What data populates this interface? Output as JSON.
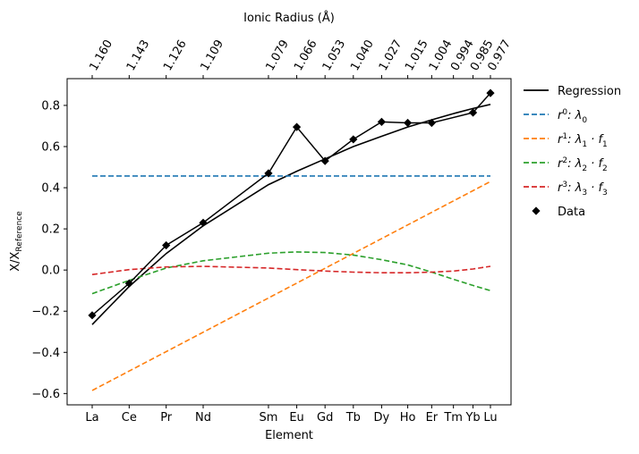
{
  "chart_data": {
    "type": "line",
    "xlabel": "Element",
    "ylabel_main": "X/X",
    "ylabel_sub": "Reference",
    "top_axis_label": "Ionic Radius (Å)",
    "ylim": [
      -0.655,
      0.93
    ],
    "yticks": [
      -0.6,
      -0.4,
      -0.2,
      0.0,
      0.2,
      0.4,
      0.6,
      0.8
    ],
    "ytick_labels": [
      "−0.6",
      "−0.4",
      "−0.2",
      "0.0",
      "0.2",
      "0.4",
      "0.6",
      "0.8"
    ],
    "elements": [
      "La",
      "Ce",
      "Pr",
      "Nd",
      "Sm",
      "Eu",
      "Gd",
      "Tb",
      "Dy",
      "Ho",
      "Er",
      "Tm",
      "Yb",
      "Lu"
    ],
    "radii": [
      1.16,
      1.143,
      1.126,
      1.109,
      1.079,
      1.066,
      1.053,
      1.04,
      1.027,
      1.015,
      1.004,
      0.994,
      0.985,
      0.977
    ],
    "radii_labels": [
      "1.160",
      "1.143",
      "1.126",
      "1.109",
      "1.079",
      "1.066",
      "1.053",
      "1.040",
      "1.027",
      "1.015",
      "1.004",
      "0.994",
      "0.985",
      "0.977"
    ],
    "data_points": {
      "name": "Data",
      "elements": [
        "La",
        "Ce",
        "Pr",
        "Nd",
        "Sm",
        "Eu",
        "Gd",
        "Tb",
        "Dy",
        "Ho",
        "Er",
        "Yb",
        "Lu"
      ],
      "values": [
        -0.22,
        -0.065,
        0.12,
        0.23,
        0.47,
        0.695,
        0.53,
        0.635,
        0.72,
        0.715,
        0.715,
        0.765,
        0.86
      ]
    },
    "series": [
      {
        "name": "Regression",
        "color": "#000000",
        "dash": "solid",
        "x": [
          1.16,
          1.143,
          1.126,
          1.109,
          1.079,
          1.066,
          1.053,
          1.04,
          1.027,
          1.015,
          1.004,
          0.994,
          0.985,
          0.977
        ],
        "values": [
          -0.265,
          -0.08,
          0.08,
          0.215,
          0.415,
          0.48,
          0.54,
          0.6,
          0.65,
          0.695,
          0.73,
          0.76,
          0.785,
          0.805
        ]
      },
      {
        "name": "r0",
        "color": "#1f77b4",
        "dash": "dashed",
        "x": [
          1.16,
          0.977
        ],
        "values": [
          0.457,
          0.457
        ]
      },
      {
        "name": "r1",
        "color": "#ff7f0e",
        "dash": "dashed",
        "x": [
          1.16,
          0.977
        ],
        "values": [
          -0.585,
          0.43
        ]
      },
      {
        "name": "r2",
        "color": "#2ca02c",
        "dash": "dashed",
        "x": [
          1.16,
          1.143,
          1.126,
          1.109,
          1.079,
          1.066,
          1.053,
          1.04,
          1.027,
          1.015,
          1.004,
          0.994,
          0.985,
          0.977
        ],
        "values": [
          -0.115,
          -0.05,
          0.01,
          0.045,
          0.082,
          0.088,
          0.085,
          0.073,
          0.05,
          0.025,
          -0.01,
          -0.045,
          -0.075,
          -0.1
        ]
      },
      {
        "name": "r3",
        "color": "#d62728",
        "dash": "dashed",
        "x": [
          1.16,
          1.143,
          1.126,
          1.109,
          1.079,
          1.066,
          1.053,
          1.04,
          1.027,
          1.015,
          1.004,
          0.994,
          0.985,
          0.977
        ],
        "values": [
          -0.022,
          0.002,
          0.015,
          0.018,
          0.01,
          0.002,
          -0.005,
          -0.01,
          -0.013,
          -0.013,
          -0.01,
          -0.005,
          0.005,
          0.018
        ]
      }
    ],
    "legend": [
      {
        "key": "regression",
        "label": "Regression",
        "kind": "line",
        "color": "#000000"
      },
      {
        "key": "r0",
        "base": "r",
        "sup": "0",
        "mid": ": λ",
        "sub": "0",
        "tail": "",
        "tail_sub": "",
        "kind": "dash",
        "color": "#1f77b4"
      },
      {
        "key": "r1",
        "base": "r",
        "sup": "1",
        "mid": ": λ",
        "sub": "1",
        "tail": " · f",
        "tail_sub": "1",
        "kind": "dash",
        "color": "#ff7f0e"
      },
      {
        "key": "r2",
        "base": "r",
        "sup": "2",
        "mid": ": λ",
        "sub": "2",
        "tail": " · f",
        "tail_sub": "2",
        "kind": "dash",
        "color": "#2ca02c"
      },
      {
        "key": "r3",
        "base": "r",
        "sup": "3",
        "mid": ": λ",
        "sub": "3",
        "tail": " · f",
        "tail_sub": "3",
        "kind": "dash",
        "color": "#d62728"
      },
      {
        "key": "data",
        "label": "Data",
        "kind": "marker",
        "color": "#000000"
      }
    ],
    "legend_placement": "outside-right",
    "grid": false
  }
}
